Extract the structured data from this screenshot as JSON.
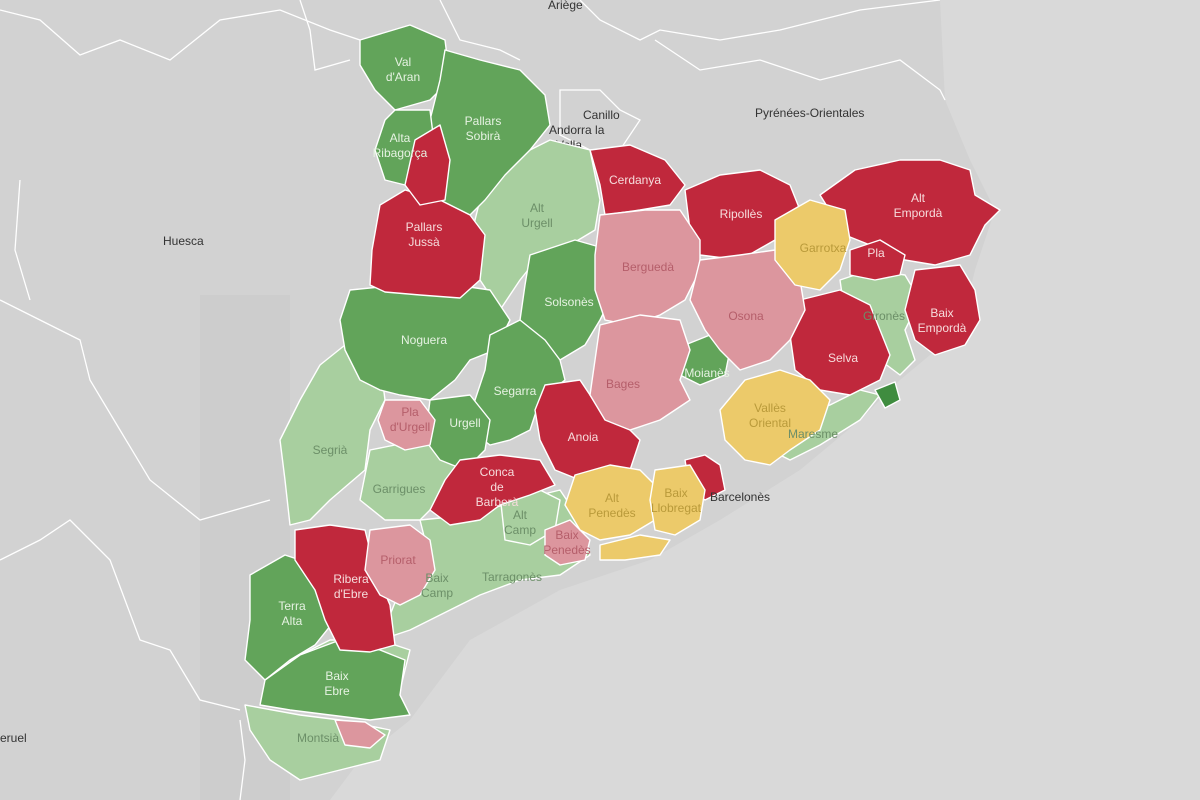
{
  "colors": {
    "background_land": "#d2d2d2",
    "background_sea": "#d9d9d9",
    "dark_red": "#c0283c",
    "light_red": "#dc969e",
    "yellow": "#ecca6a",
    "light_green": "#a8cf9f",
    "green": "#62a45a",
    "dark_green": "#3f8c3f"
  },
  "outside_labels": {
    "ariege": "Ariège",
    "canillo": "Canillo",
    "andorra_1": "Andorra la",
    "andorra_2": "Vella",
    "pyrenees": "Pyrénées-Orientales",
    "huesca": "Huesca",
    "teruel": "eruel"
  },
  "comarques": {
    "val_daran": [
      "Val",
      "d'Aran"
    ],
    "pallars_sobira": [
      "Pallars",
      "Sobirà"
    ],
    "alta_ribagorca": [
      "Alta",
      "Ribagorça"
    ],
    "pallars_jussa": [
      "Pallars",
      "Jussà"
    ],
    "alt_urgell": [
      "Alt",
      "Urgell"
    ],
    "cerdanya": [
      "Cerdanya"
    ],
    "ripolles": [
      "Ripollès"
    ],
    "alt_emporda": [
      "Alt",
      "Empordà"
    ],
    "bergueda": [
      "Berguedà"
    ],
    "solsones": [
      "Solsonès"
    ],
    "garrotxa": [
      "Garrotxa"
    ],
    "pla_estany": [
      "Pla"
    ],
    "girones": [
      "Gironès"
    ],
    "baix_emporda": [
      "Baix",
      "Empordà"
    ],
    "osona": [
      "Osona"
    ],
    "noguera": [
      "Noguera"
    ],
    "selva": [
      "Selva"
    ],
    "moianes": [
      "Moianès"
    ],
    "bages": [
      "Bages"
    ],
    "segarra": [
      "Segarra"
    ],
    "pla_urgell": [
      "Pla",
      "d'Urgell"
    ],
    "urgell": [
      "Urgell"
    ],
    "anoia": [
      "Anoia"
    ],
    "valles_oriental": [
      "Vallès",
      "Oriental"
    ],
    "maresme": [
      "Maresme"
    ],
    "segria": [
      "Segrià"
    ],
    "garrigues": [
      "Garrigues"
    ],
    "conca_barbera": [
      "Conca",
      "de",
      "Barberà"
    ],
    "alt_camp": [
      "Alt",
      "Camp"
    ],
    "alt_penedes": [
      "Alt",
      "Penedès"
    ],
    "baix_llobregat": [
      "Baix",
      "Llobregat"
    ],
    "barcelones": [
      "Barcelonès"
    ],
    "baix_penedes": [
      "Baix",
      "Penedès"
    ],
    "priorat": [
      "Priorat"
    ],
    "ribera_ebre": [
      "Ribera",
      "d'Ebre"
    ],
    "baix_camp": [
      "Baix",
      "Camp"
    ],
    "tarragones": [
      "Tarragonès"
    ],
    "terra_alta": [
      "Terra",
      "Alta"
    ],
    "baix_ebre": [
      "Baix",
      "Ebre"
    ],
    "montsia": [
      "Montsià"
    ]
  }
}
